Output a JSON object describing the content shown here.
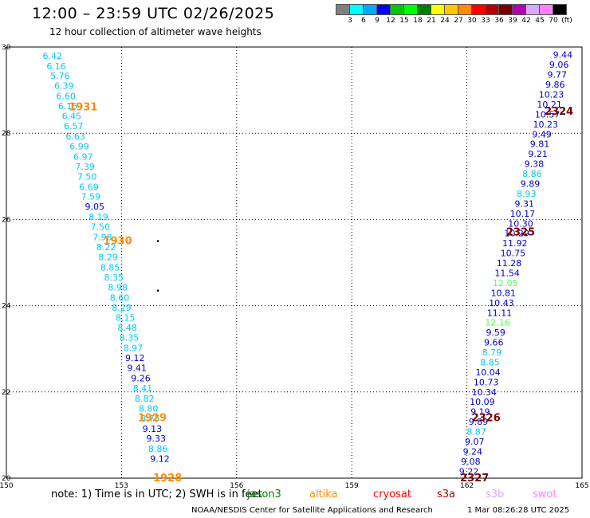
{
  "header": {
    "title": "12:00 – 23:59 UTC 02/26/2025",
    "subtitle": "12 hour collection of altimeter wave heights"
  },
  "colorbar": {
    "colors": [
      "#808080",
      "#00ffff",
      "#00a8ff",
      "#0000ff",
      "#00c800",
      "#00ff00",
      "#008000",
      "#ffff00",
      "#ffc800",
      "#ff8c00",
      "#ff0000",
      "#b40000",
      "#780000",
      "#b400b4",
      "#d8a8ff",
      "#ff80ff",
      "#000000"
    ],
    "labels": [
      "3",
      "6",
      "9",
      "12",
      "15",
      "18",
      "21",
      "24",
      "27",
      "30",
      "33",
      "36",
      "39",
      "42",
      "45",
      "70",
      "(ft)"
    ]
  },
  "footer": {
    "note": "note: 1) Time is in UTC; 2) SWH is in feet",
    "satellites": [
      {
        "name": "jason3",
        "color": "#008000"
      },
      {
        "name": "altika",
        "color": "#ff8c00"
      },
      {
        "name": "cryosat",
        "color": "#ff0000"
      },
      {
        "name": "s3a",
        "color": "#b40000"
      },
      {
        "name": "s3b",
        "color": "#d8a8ff"
      },
      {
        "name": "swot",
        "color": "#ff80ff"
      }
    ],
    "credit": "NOAA/NESDIS Center for Satellite Applications and Research",
    "timestamp": "1 Mar 08:26:28 UTC 2025"
  },
  "chart_data": {
    "type": "scatter",
    "xlim": [
      150,
      165
    ],
    "ylim": [
      20,
      30
    ],
    "x_ticks": [
      "150",
      "153",
      "156",
      "159",
      "162",
      "165"
    ],
    "y_ticks": [
      "20",
      "22",
      "24",
      "26",
      "28",
      "30"
    ],
    "grid": true,
    "passes": [
      {
        "label": "1931",
        "color": "#ff8c00",
        "lon": 152.0,
        "lat": 28.6
      },
      {
        "label": "1930",
        "color": "#ff8c00",
        "lon": 152.9,
        "lat": 25.5
      },
      {
        "label": "1929",
        "color": "#ff8c00",
        "lon": 153.8,
        "lat": 21.4
      },
      {
        "label": "1928",
        "color": "#ff8c00",
        "lon": 154.2,
        "lat": 20.0
      },
      {
        "label": "2324",
        "color": "#780000",
        "lon": 164.4,
        "lat": 28.5
      },
      {
        "label": "2325",
        "color": "#780000",
        "lon": 163.4,
        "lat": 25.7
      },
      {
        "label": "2326",
        "color": "#780000",
        "lon": 162.5,
        "lat": 21.4
      },
      {
        "label": "2327",
        "color": "#780000",
        "lon": 162.2,
        "lat": 20.0
      }
    ],
    "stray_points": [
      {
        "lon": 153.95,
        "lat": 25.5
      },
      {
        "lon": 153.95,
        "lat": 24.35
      }
    ],
    "tracks": [
      {
        "points": [
          {
            "lon": 151.2,
            "lat": 29.8,
            "v": "6.42",
            "c": "#00c8ff"
          },
          {
            "lon": 151.3,
            "lat": 29.56,
            "v": "6.16",
            "c": "#00c8ff"
          },
          {
            "lon": 151.4,
            "lat": 29.33,
            "v": "5.76",
            "c": "#00c8ff"
          },
          {
            "lon": 151.5,
            "lat": 29.1,
            "v": "6.39",
            "c": "#00c8ff"
          },
          {
            "lon": 151.55,
            "lat": 28.86,
            "v": "6.60",
            "c": "#00c8ff"
          },
          {
            "lon": 151.6,
            "lat": 28.63,
            "v": "6.15",
            "c": "#00c8ff"
          },
          {
            "lon": 151.7,
            "lat": 28.4,
            "v": "6.45",
            "c": "#00c8ff"
          },
          {
            "lon": 151.75,
            "lat": 28.17,
            "v": "6.57",
            "c": "#00c8ff"
          },
          {
            "lon": 151.8,
            "lat": 27.93,
            "v": "6.63",
            "c": "#00c8ff"
          },
          {
            "lon": 151.9,
            "lat": 27.7,
            "v": "6.99",
            "c": "#00c8ff"
          },
          {
            "lon": 152.0,
            "lat": 27.46,
            "v": "6.97",
            "c": "#00c8ff"
          },
          {
            "lon": 152.05,
            "lat": 27.23,
            "v": "7.39",
            "c": "#00c8ff"
          },
          {
            "lon": 152.1,
            "lat": 27.0,
            "v": "7.50",
            "c": "#00c8ff"
          },
          {
            "lon": 152.15,
            "lat": 26.76,
            "v": "6.69",
            "c": "#00c8ff"
          },
          {
            "lon": 152.2,
            "lat": 26.53,
            "v": "7.59",
            "c": "#00c8ff"
          },
          {
            "lon": 152.3,
            "lat": 26.3,
            "v": "9.05",
            "c": "#0000c8"
          },
          {
            "lon": 152.4,
            "lat": 26.06,
            "v": "8.19",
            "c": "#00c8ff"
          },
          {
            "lon": 152.45,
            "lat": 25.83,
            "v": "7.50",
            "c": "#00c8ff"
          },
          {
            "lon": 152.5,
            "lat": 25.59,
            "v": "7.98",
            "c": "#00c8ff"
          },
          {
            "lon": 152.6,
            "lat": 25.36,
            "v": "8.22",
            "c": "#00c8ff"
          },
          {
            "lon": 152.65,
            "lat": 25.13,
            "v": "8.29",
            "c": "#00c8ff"
          },
          {
            "lon": 152.7,
            "lat": 24.89,
            "v": "8.85",
            "c": "#00c8ff"
          },
          {
            "lon": 152.8,
            "lat": 24.66,
            "v": "8.35",
            "c": "#00c8ff"
          },
          {
            "lon": 152.9,
            "lat": 24.43,
            "v": "8.98",
            "c": "#00c8ff"
          },
          {
            "lon": 152.95,
            "lat": 24.19,
            "v": "8.60",
            "c": "#00c8ff"
          },
          {
            "lon": 153.0,
            "lat": 23.96,
            "v": "8.29",
            "c": "#00c8ff"
          },
          {
            "lon": 153.1,
            "lat": 23.72,
            "v": "8.15",
            "c": "#00c8ff"
          },
          {
            "lon": 153.15,
            "lat": 23.49,
            "v": "8.48",
            "c": "#00c8ff"
          },
          {
            "lon": 153.2,
            "lat": 23.26,
            "v": "8.35",
            "c": "#00c8ff"
          },
          {
            "lon": 153.3,
            "lat": 23.02,
            "v": "8.97",
            "c": "#00c8ff"
          },
          {
            "lon": 153.35,
            "lat": 22.79,
            "v": "9.12",
            "c": "#0000c8"
          },
          {
            "lon": 153.4,
            "lat": 22.56,
            "v": "9.41",
            "c": "#0000c8"
          },
          {
            "lon": 153.5,
            "lat": 22.32,
            "v": "9.26",
            "c": "#0000c8"
          },
          {
            "lon": 153.55,
            "lat": 22.09,
            "v": "8.41",
            "c": "#00c8ff"
          },
          {
            "lon": 153.6,
            "lat": 21.85,
            "v": "8.82",
            "c": "#00c8ff"
          },
          {
            "lon": 153.7,
            "lat": 21.62,
            "v": "8.80",
            "c": "#00c8ff"
          },
          {
            "lon": 153.75,
            "lat": 21.39,
            "v": "8.75",
            "c": "#00c8ff"
          },
          {
            "lon": 153.8,
            "lat": 21.15,
            "v": "9.13",
            "c": "#0000c8"
          },
          {
            "lon": 153.9,
            "lat": 20.92,
            "v": "9.33",
            "c": "#0000c8"
          },
          {
            "lon": 153.95,
            "lat": 20.68,
            "v": "8.86",
            "c": "#00c8ff"
          },
          {
            "lon": 154.0,
            "lat": 20.45,
            "v": "9.12",
            "c": "#0000c8"
          }
        ]
      },
      {
        "points": [
          {
            "lon": 164.5,
            "lat": 29.82,
            "v": "9.44",
            "c": "#0000c8"
          },
          {
            "lon": 164.4,
            "lat": 29.59,
            "v": "9.06",
            "c": "#0000c8"
          },
          {
            "lon": 164.35,
            "lat": 29.36,
            "v": "9.77",
            "c": "#0000c8"
          },
          {
            "lon": 164.3,
            "lat": 29.13,
            "v": "9.86",
            "c": "#0000c8"
          },
          {
            "lon": 164.2,
            "lat": 28.9,
            "v": "10.23",
            "c": "#0000c8"
          },
          {
            "lon": 164.15,
            "lat": 28.67,
            "v": "10.21",
            "c": "#0000c8"
          },
          {
            "lon": 164.1,
            "lat": 28.44,
            "v": "10.57",
            "c": "#0000c8"
          },
          {
            "lon": 164.05,
            "lat": 28.21,
            "v": "10.23",
            "c": "#0000c8"
          },
          {
            "lon": 163.95,
            "lat": 27.98,
            "v": "9.49",
            "c": "#0000c8"
          },
          {
            "lon": 163.9,
            "lat": 27.75,
            "v": "9.81",
            "c": "#0000c8"
          },
          {
            "lon": 163.85,
            "lat": 27.52,
            "v": "9.21",
            "c": "#0000c8"
          },
          {
            "lon": 163.75,
            "lat": 27.29,
            "v": "9.38",
            "c": "#0000c8"
          },
          {
            "lon": 163.7,
            "lat": 27.06,
            "v": "8.86",
            "c": "#00c8ff"
          },
          {
            "lon": 163.65,
            "lat": 26.83,
            "v": "9.89",
            "c": "#0000c8"
          },
          {
            "lon": 163.55,
            "lat": 26.6,
            "v": "8.93",
            "c": "#00c8ff"
          },
          {
            "lon": 163.5,
            "lat": 26.37,
            "v": "9.31",
            "c": "#0000c8"
          },
          {
            "lon": 163.45,
            "lat": 26.14,
            "v": "10.17",
            "c": "#0000c8"
          },
          {
            "lon": 163.4,
            "lat": 25.91,
            "v": "10.30",
            "c": "#0000c8"
          },
          {
            "lon": 163.3,
            "lat": 25.68,
            "v": "10.29",
            "c": "#0000c8"
          },
          {
            "lon": 163.25,
            "lat": 25.45,
            "v": "11.92",
            "c": "#0000c8"
          },
          {
            "lon": 163.2,
            "lat": 25.22,
            "v": "10.75",
            "c": "#0000c8"
          },
          {
            "lon": 163.1,
            "lat": 24.99,
            "v": "11.28",
            "c": "#0000c8"
          },
          {
            "lon": 163.05,
            "lat": 24.76,
            "v": "11.54",
            "c": "#0000c8"
          },
          {
            "lon": 163.0,
            "lat": 24.53,
            "v": "12.05",
            "c": "#50ff50"
          },
          {
            "lon": 162.95,
            "lat": 24.3,
            "v": "10.81",
            "c": "#0000c8"
          },
          {
            "lon": 162.9,
            "lat": 24.07,
            "v": "10.43",
            "c": "#0000c8"
          },
          {
            "lon": 162.85,
            "lat": 23.84,
            "v": "11.11",
            "c": "#0000c8"
          },
          {
            "lon": 162.8,
            "lat": 23.61,
            "v": "12.16",
            "c": "#50ff50"
          },
          {
            "lon": 162.75,
            "lat": 23.38,
            "v": "9.59",
            "c": "#0000c8"
          },
          {
            "lon": 162.7,
            "lat": 23.15,
            "v": "9.66",
            "c": "#0000c8"
          },
          {
            "lon": 162.65,
            "lat": 22.92,
            "v": "8.79",
            "c": "#00c8ff"
          },
          {
            "lon": 162.6,
            "lat": 22.69,
            "v": "8.85",
            "c": "#00c8ff"
          },
          {
            "lon": 162.55,
            "lat": 22.46,
            "v": "10.04",
            "c": "#0000c8"
          },
          {
            "lon": 162.5,
            "lat": 22.23,
            "v": "10.73",
            "c": "#0000c8"
          },
          {
            "lon": 162.45,
            "lat": 22.0,
            "v": "10.34",
            "c": "#0000c8"
          },
          {
            "lon": 162.4,
            "lat": 21.77,
            "v": "10.09",
            "c": "#0000c8"
          },
          {
            "lon": 162.35,
            "lat": 21.54,
            "v": "9.19",
            "c": "#0000c8"
          },
          {
            "lon": 162.3,
            "lat": 21.31,
            "v": "9.89",
            "c": "#0000c8"
          },
          {
            "lon": 162.25,
            "lat": 21.08,
            "v": "8.87",
            "c": "#00c8ff"
          },
          {
            "lon": 162.2,
            "lat": 20.85,
            "v": "9.07",
            "c": "#0000c8"
          },
          {
            "lon": 162.15,
            "lat": 20.62,
            "v": "9.24",
            "c": "#0000c8"
          },
          {
            "lon": 162.1,
            "lat": 20.39,
            "v": "9.08",
            "c": "#0000c8"
          },
          {
            "lon": 162.05,
            "lat": 20.16,
            "v": "9.22",
            "c": "#0000c8"
          }
        ]
      }
    ]
  }
}
